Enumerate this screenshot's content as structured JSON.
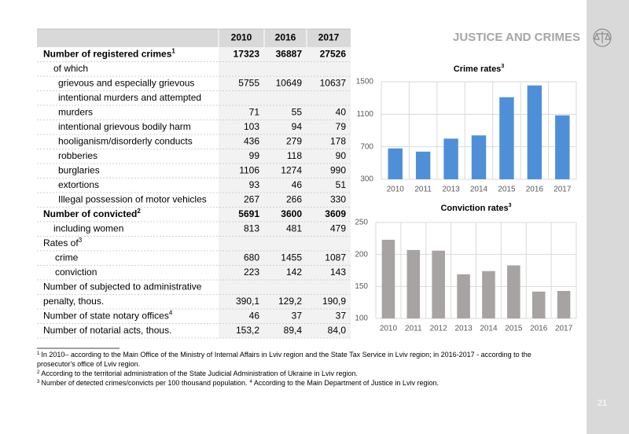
{
  "header": {
    "title": "JUSTICE AND CRIMES",
    "page_number": "21"
  },
  "table": {
    "columns": [
      "2010",
      "2016",
      "2017"
    ],
    "rows": [
      {
        "label": "Number of registered crimes",
        "sup": "1",
        "cells": [
          "17323",
          "36887",
          "27526"
        ]
      },
      {
        "label": "of which"
      },
      {
        "label": "grievous and especially grievous",
        "cells": [
          "5755",
          "10649",
          "10637"
        ]
      },
      {
        "label": "intentional murders and  attempted"
      },
      {
        "label": "murders",
        "cells": [
          "71",
          "55",
          "40"
        ]
      },
      {
        "label": "intentional grievous bodily harm",
        "cells": [
          "103",
          "94",
          "79"
        ]
      },
      {
        "label": "hooliganism/disorderly conducts",
        "cells": [
          "436",
          "279",
          "178"
        ]
      },
      {
        "label": "robberies",
        "cells": [
          "99",
          "118",
          "90"
        ]
      },
      {
        "label": "burglaries",
        "cells": [
          "1106",
          "1274",
          "990"
        ]
      },
      {
        "label": "extortions",
        "cells": [
          "93",
          "46",
          "51"
        ]
      },
      {
        "label": "Illegal possession of motor vehicles",
        "cells": [
          "267",
          "266",
          "330"
        ]
      },
      {
        "label": "Number  of convicted",
        "sup": "2",
        "cells": [
          "5691",
          "3600",
          "3609"
        ]
      },
      {
        "label": "including women",
        "cells": [
          "813",
          "481",
          "479"
        ]
      },
      {
        "label": "Rates of",
        "sup": "3"
      },
      {
        "label": "crime",
        "cells": [
          "680",
          "1455",
          "1087"
        ]
      },
      {
        "label": "conviction",
        "cells": [
          "223",
          "142",
          "143"
        ]
      },
      {
        "label": "Number of subjected to administrative"
      },
      {
        "label": "penalty, thous.",
        "cells": [
          "390,1",
          "129,2",
          "190,9"
        ]
      },
      {
        "label": "Number of state notary offices",
        "sup": "4",
        "cells": [
          "46",
          "37",
          "37"
        ]
      },
      {
        "label": "Number of notarial acts, thous.",
        "cells": [
          "153,2",
          "89,4",
          "84,0"
        ]
      }
    ]
  },
  "chart_data": [
    {
      "type": "bar",
      "title": "Crime rates",
      "title_sup": "3",
      "categories": [
        "2010",
        "2011",
        "2013",
        "2014",
        "2015",
        "2016",
        "2017"
      ],
      "values": [
        680,
        640,
        800,
        840,
        1310,
        1455,
        1087
      ],
      "color": "#4f8fd8",
      "ylim": [
        300,
        1500
      ],
      "yticks": [
        300,
        700,
        1100,
        1500
      ],
      "grid": true
    },
    {
      "type": "bar",
      "title": "Conviction rates",
      "title_sup": "3",
      "categories": [
        "2010",
        "2011",
        "2012",
        "2013",
        "2014",
        "2015",
        "2016",
        "2017"
      ],
      "values": [
        223,
        207,
        206,
        169,
        174,
        183,
        142,
        143
      ],
      "color": "#a8a3a3",
      "ylim": [
        100,
        250
      ],
      "yticks": [
        100,
        150,
        200,
        250
      ],
      "grid": true
    }
  ],
  "footnotes": [
    {
      "mark": "1",
      "text": "In  2010– according to the Main Office of the Ministry of Internal Affairs in Lviv region and the State Tax Service in Lviv region; in 2016-2017 - according to the",
      "text2": "prosecutor's office of Lviv region."
    },
    {
      "mark": "2",
      "text": "According to the territorial administration of the State Judicial Administration of Ukraine in Lviv region."
    },
    {
      "mark": "3",
      "text": "Number of detected crimes/convicts per 100 thousand population.",
      "mark2": "4",
      "text2": "According to the Main Department of Justice in Lviv region."
    }
  ]
}
